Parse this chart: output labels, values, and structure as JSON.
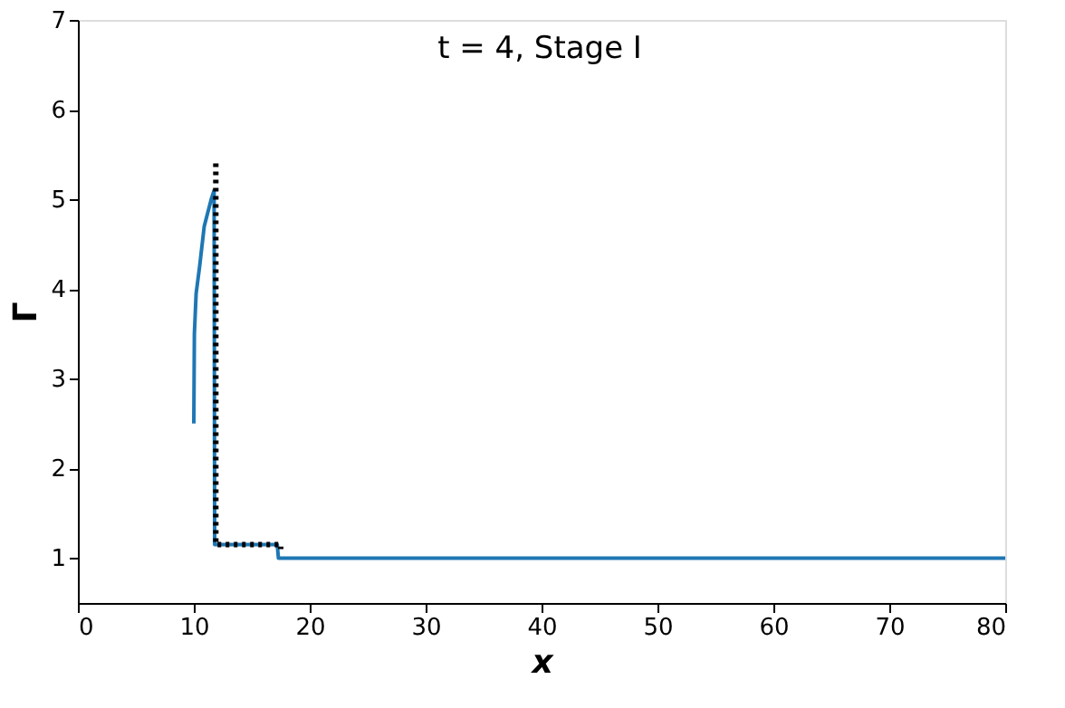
{
  "chart_data": {
    "type": "line",
    "title": "t = 4, Stage I",
    "xlabel": "x",
    "ylabel": "Γ",
    "xlim": [
      0,
      80
    ],
    "xticks": [
      0,
      10,
      20,
      30,
      40,
      50,
      60,
      70,
      80
    ],
    "ylim": [
      0.5,
      7
    ],
    "yticks": [
      1,
      2,
      3,
      4,
      5,
      6,
      7
    ],
    "grid": false,
    "series": [
      {
        "color": "#1f77b4",
        "line_style": "solid",
        "x": [
          10.0,
          10.05,
          10.2,
          10.5,
          10.9,
          11.1,
          11.5,
          11.75,
          11.8,
          12.5,
          15,
          17.2,
          17.3,
          17.5,
          30,
          50,
          80
        ],
        "values": [
          2.5,
          3.5,
          3.95,
          4.25,
          4.7,
          4.8,
          5.0,
          5.1,
          1.15,
          1.15,
          1.15,
          1.15,
          1.0,
          1.0,
          1.0,
          1.0,
          1.0
        ]
      },
      {
        "color": "#000000",
        "line_style": "dotted",
        "x": [
          11.9,
          11.9,
          14,
          17.5,
          17.5
        ],
        "values": [
          5.4,
          1.15,
          1.15,
          1.15,
          1.1
        ]
      }
    ]
  }
}
